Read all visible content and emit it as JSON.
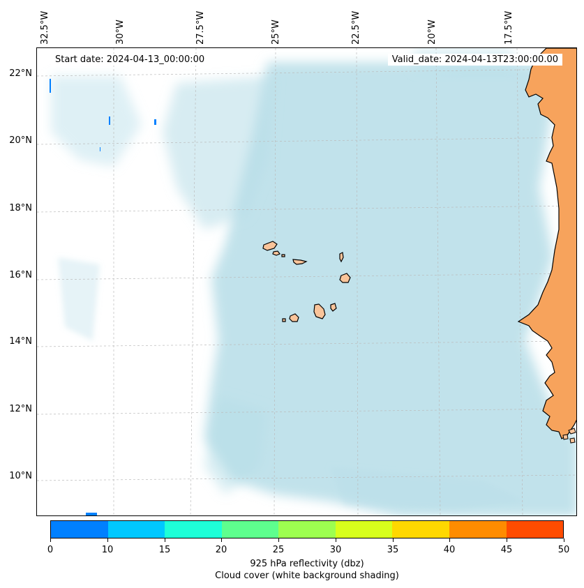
{
  "map": {
    "start_date": "Start date: 2024-04-13_00:00:00",
    "valid_date": "Valid_date: 2024-04-13T23:00:00.00",
    "lon_labels": [
      "32.5°W",
      "30°W",
      "27.5°W",
      "25°W",
      "22.5°W",
      "20°W",
      "17.5°W"
    ],
    "lat_labels": [
      "22°N",
      "20°N",
      "18°N",
      "16°N",
      "14°N",
      "12°N",
      "10°N"
    ],
    "extent": {
      "lon_min": -32.5,
      "lon_max": -15.3,
      "lat_min": 8.9,
      "lat_max": 22.8
    },
    "colors": {
      "land": "#f7a35c",
      "island": "#f9c49a",
      "cloud": "#b6dde8",
      "ocean": "#ffffff"
    }
  },
  "colorbar": {
    "ticks": [
      "0",
      "10",
      "15",
      "20",
      "25",
      "30",
      "35",
      "40",
      "45",
      "50"
    ],
    "colors": [
      "#0080ff",
      "#00c8ff",
      "#1effd8",
      "#5eff8e",
      "#9dff50",
      "#d8ff1c",
      "#ffd800",
      "#ff8c00",
      "#ff4c00"
    ],
    "label_line1": "925 hPa reflectivity (dbz)",
    "label_line2": "Cloud cover (white background shading)"
  }
}
